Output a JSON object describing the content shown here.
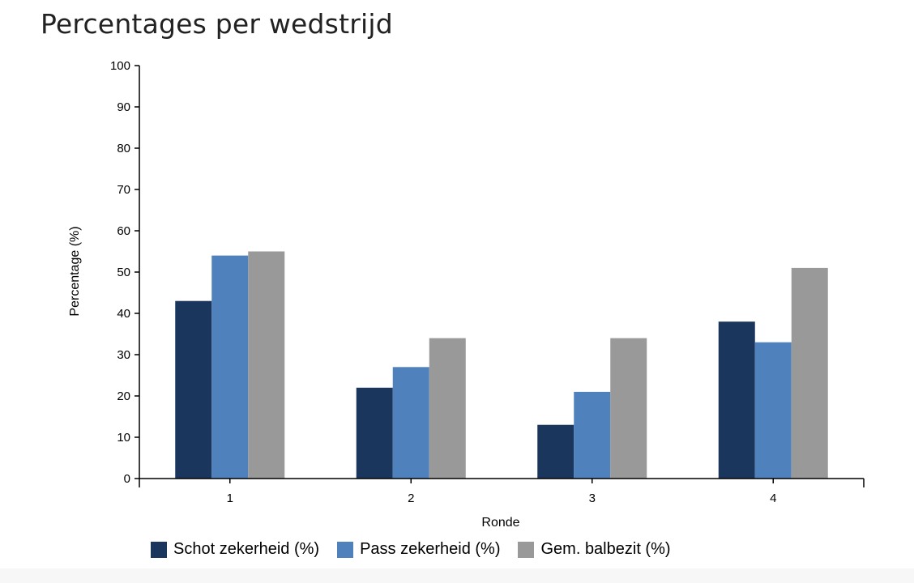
{
  "title": "Percentages per wedstrijd",
  "colors": {
    "series": [
      "#1b365d",
      "#4f81bd",
      "#999999"
    ]
  },
  "chart_data": {
    "type": "bar",
    "title": "Percentages per wedstrijd",
    "xlabel": "Ronde",
    "ylabel": "Percentage (%)",
    "categories": [
      "1",
      "2",
      "3",
      "4"
    ],
    "ylim": [
      0,
      100
    ],
    "yticks": [
      0,
      10,
      20,
      30,
      40,
      50,
      60,
      70,
      80,
      90,
      100
    ],
    "grid": false,
    "legend_position": "bottom",
    "series": [
      {
        "name": "Schot zekerheid (%)",
        "values": [
          43,
          22,
          13,
          38
        ]
      },
      {
        "name": "Pass zekerheid (%)",
        "values": [
          54,
          27,
          21,
          33
        ]
      },
      {
        "name": "Gem. balbezit (%)",
        "values": [
          55,
          34,
          34,
          51
        ]
      }
    ]
  }
}
